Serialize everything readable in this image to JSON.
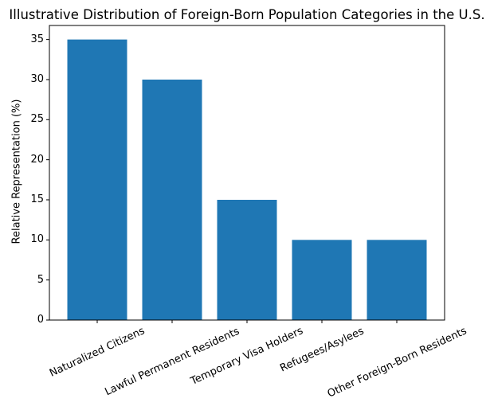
{
  "chart_data": {
    "type": "bar",
    "title": "Illustrative Distribution of Foreign-Born Population Categories in the U.S.",
    "xlabel": "",
    "ylabel": "Relative Representation (%)",
    "categories": [
      "Naturalized Citizens",
      "Lawful Permanent Residents",
      "Temporary Visa Holders",
      "Refugees/Asylees",
      "Other Foreign-Born Residents"
    ],
    "values": [
      35,
      30,
      15,
      10,
      10
    ],
    "ylim": [
      0,
      36.75
    ],
    "yticks": [
      0,
      5,
      10,
      15,
      20,
      25,
      30,
      35
    ],
    "xtick_rotation": 25,
    "grid": false,
    "legend": null,
    "bar_color": "#1f77b4"
  }
}
